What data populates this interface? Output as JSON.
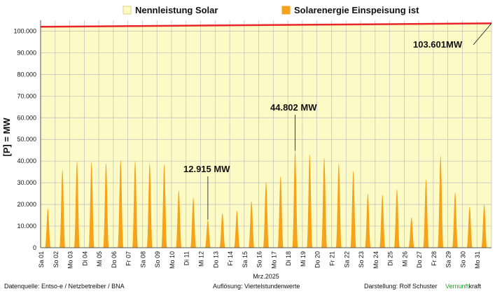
{
  "chart_data": {
    "type": "area",
    "xlabel": "Mrz.2025",
    "ylabel": "[P]  =  MW",
    "ylim": [
      0,
      105000
    ],
    "y_ticks": [
      "0",
      "10.000",
      "20.000",
      "30.000",
      "40.000",
      "50.000",
      "60.000",
      "70.000",
      "80.000",
      "90.000",
      "100.000"
    ],
    "y_tick_values": [
      0,
      10000,
      20000,
      30000,
      40000,
      50000,
      60000,
      70000,
      80000,
      90000,
      100000
    ],
    "categories": [
      "Sa 01",
      "So 02",
      "Mo 03",
      "Di 04",
      "Mi 05",
      "Do 06",
      "Fr 07",
      "Sa 08",
      "So 09",
      "Mo 10",
      "Di 11",
      "Mi 12",
      "Do 13",
      "Fr 14",
      "Sa 15",
      "So 16",
      "Mo 17",
      "Di 18",
      "Mi 19",
      "Do 20",
      "Fr 21",
      "Sa 22",
      "So 23",
      "Mo 24",
      "Di 25",
      "Mi 26",
      "Do 27",
      "Fr 28",
      "Sa 29",
      "So 30",
      "Mo 31"
    ],
    "grid": true,
    "legend_position": "top",
    "series": [
      {
        "name": "Nennleistung Solar",
        "style": "line-with-fill",
        "color": "#e8252a",
        "fill_color": "#fcfbc6",
        "start_value": 102000,
        "end_value": 103601
      },
      {
        "name": "Solarenergie Einspeisung ist",
        "style": "daily-peaks",
        "color": "#f7a21b",
        "values": [
          18000,
          36000,
          40000,
          39500,
          39000,
          40500,
          40000,
          39000,
          38500,
          26500,
          23000,
          12915,
          16000,
          17000,
          21500,
          30500,
          33000,
          44802,
          43000,
          41500,
          39000,
          35500,
          25000,
          24500,
          27000,
          14000,
          31500,
          42500,
          25500,
          19000,
          20000
        ]
      }
    ],
    "annotations": [
      {
        "text": "103.601MW",
        "value": 103601,
        "target_day_index": 31
      },
      {
        "text": "44.802 MW",
        "value": 44802,
        "target_day_index": 17
      },
      {
        "text": "12.915 MW",
        "value": 12915,
        "target_day_index": 11
      }
    ],
    "legend": {
      "items": [
        {
          "label": "Nennleistung Solar",
          "color": "#fcfbc6",
          "border": "#d8d08a"
        },
        {
          "label": "Solarenergie Einspeisung ist",
          "color": "#f7a21b",
          "border": "#f7a21b"
        }
      ]
    },
    "footer": {
      "source": "Datenquelle:  Entso-e  / Netzbetreiber / BNA",
      "resolution": "Auflösung: Viertelstundenwerte",
      "author": "Darstellung:  Rolf Schuster",
      "brand_green": "Vernunft",
      "brand_rest": "kraft",
      "brand_green_color": "#2aa52a"
    }
  }
}
